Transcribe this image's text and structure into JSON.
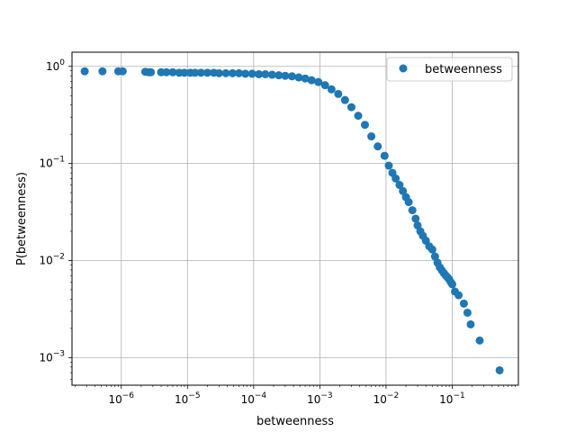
{
  "chart_data": {
    "type": "scatter",
    "title": "",
    "xlabel": "betweenness",
    "ylabel": "P(betweenness)",
    "xscale": "log",
    "yscale": "log",
    "xlim": [
      1.8e-07,
      1.0
    ],
    "ylim": [
      0.00052,
      1.4
    ],
    "grid": true,
    "legend": {
      "placement": "top-right",
      "entries": [
        "betweenness"
      ]
    },
    "colors": {
      "series": "#1f77b4",
      "grid": "#b0b0b0",
      "axes": "#000000"
    },
    "x_ticks": [
      {
        "value": 1e-06,
        "base": "10",
        "exp": "−6"
      },
      {
        "value": 1e-05,
        "base": "10",
        "exp": "−5"
      },
      {
        "value": 0.0001,
        "base": "10",
        "exp": "−4"
      },
      {
        "value": 0.001,
        "base": "10",
        "exp": "−3"
      },
      {
        "value": 0.01,
        "base": "10",
        "exp": "−2"
      },
      {
        "value": 0.1,
        "base": "10",
        "exp": "−1"
      }
    ],
    "y_ticks": [
      {
        "value": 0.001,
        "base": "10",
        "exp": "−3"
      },
      {
        "value": 0.01,
        "base": "10",
        "exp": "−2"
      },
      {
        "value": 0.1,
        "base": "10",
        "exp": "−1"
      },
      {
        "value": 1,
        "base": "10",
        "exp": "0"
      }
    ],
    "series": [
      {
        "name": "betweenness",
        "x": [
          2.8e-07,
          5.2e-07,
          9e-07,
          1.05e-06,
          2.3e-06,
          2.6e-06,
          2.8e-06,
          4e-06,
          4.8e-06,
          6e-06,
          7.5e-06,
          9e-06,
          1.1e-05,
          1.3e-05,
          1.6e-05,
          2e-05,
          2.5e-05,
          3e-05,
          3.8e-05,
          4.8e-05,
          6e-05,
          7.5e-05,
          9.5e-05,
          0.00012,
          0.00015,
          0.00019,
          0.00024,
          0.0003,
          0.00038,
          0.00048,
          0.0006,
          0.00075,
          0.00095,
          0.0012,
          0.0015,
          0.0019,
          0.0024,
          0.003,
          0.0038,
          0.0048,
          0.006,
          0.0075,
          0.0095,
          0.011,
          0.0125,
          0.014,
          0.016,
          0.018,
          0.02,
          0.022,
          0.025,
          0.028,
          0.03,
          0.033,
          0.036,
          0.04,
          0.045,
          0.05,
          0.055,
          0.06,
          0.065,
          0.07,
          0.075,
          0.08,
          0.085,
          0.09,
          0.095,
          0.1,
          0.11,
          0.125,
          0.15,
          0.17,
          0.19,
          0.26,
          0.52
        ],
        "y": [
          0.89,
          0.89,
          0.89,
          0.89,
          0.88,
          0.87,
          0.87,
          0.87,
          0.87,
          0.87,
          0.86,
          0.86,
          0.86,
          0.86,
          0.86,
          0.86,
          0.86,
          0.85,
          0.85,
          0.85,
          0.85,
          0.84,
          0.84,
          0.83,
          0.83,
          0.82,
          0.81,
          0.8,
          0.79,
          0.77,
          0.75,
          0.72,
          0.69,
          0.64,
          0.58,
          0.52,
          0.45,
          0.38,
          0.31,
          0.25,
          0.19,
          0.15,
          0.12,
          0.095,
          0.08,
          0.07,
          0.06,
          0.052,
          0.045,
          0.04,
          0.033,
          0.027,
          0.023,
          0.02,
          0.018,
          0.016,
          0.014,
          0.013,
          0.011,
          0.0095,
          0.0085,
          0.0079,
          0.0074,
          0.007,
          0.0067,
          0.0064,
          0.006,
          0.0057,
          0.0048,
          0.0044,
          0.0036,
          0.0029,
          0.0022,
          0.0015,
          0.00074
        ]
      }
    ]
  }
}
